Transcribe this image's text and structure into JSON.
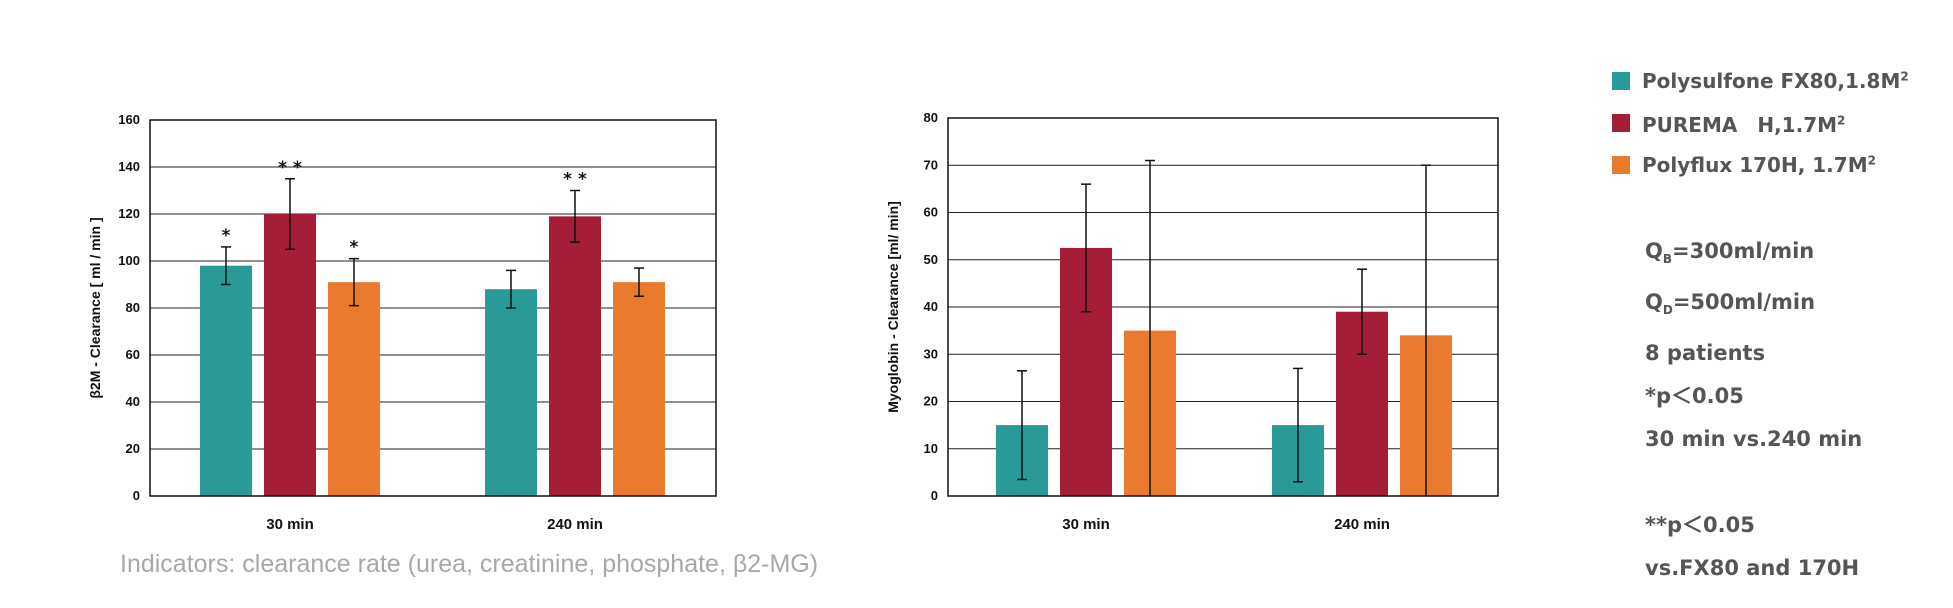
{
  "colors": {
    "teal": "#2a9a98",
    "crimson": "#a51d36",
    "orange": "#ea7a2e"
  },
  "legend": [
    {
      "label": "Polysulfone FX80,1.8M",
      "sup": "2",
      "color": "#2a9a98"
    },
    {
      "label": "PUREMA　H,1.7M",
      "sup": "2",
      "color": "#a51d36"
    },
    {
      "label": "Polyflux 170H, 1.7M",
      "sup": "2",
      "color": "#ea7a2e"
    }
  ],
  "notes": {
    "qb_prefix": "Q",
    "qb_sub": "B",
    "qb_rest": "=300ml/min",
    "qd_prefix": "Q",
    "qd_sub": "D",
    "qd_rest": "=500ml/min",
    "patients": "8 patients",
    "p1": "*p＜0.05",
    "p1_desc": "30 min vs.240 min",
    "p2": "**p＜0.05",
    "p2_desc": "vs.FX80 and 170H"
  },
  "caption": "Indicators: clearance rate (urea, creatinine, phosphate, β2-MG)",
  "chart_data": [
    {
      "type": "bar",
      "categories": [
        "30 min",
        "240 min"
      ],
      "ylabel": "β2M - Clearance [ ml / min ]",
      "ylim": [
        0,
        160
      ],
      "yticks": [
        0,
        20,
        40,
        60,
        80,
        100,
        120,
        140,
        160
      ],
      "grid": true,
      "series": [
        {
          "name": "Polysulfone FX80,1.8M2",
          "color": "#2a9a98",
          "values": [
            98,
            88
          ],
          "err": [
            8,
            8
          ],
          "stars": [
            "*",
            ""
          ]
        },
        {
          "name": "PUREMA H,1.7M2",
          "color": "#a51d36",
          "values": [
            120,
            119
          ],
          "err": [
            15,
            11
          ],
          "stars": [
            "* *",
            "* *"
          ]
        },
        {
          "name": "Polyflux 170H, 1.7M2",
          "color": "#ea7a2e",
          "values": [
            91,
            91
          ],
          "err": [
            10,
            6
          ],
          "stars": [
            "*",
            ""
          ]
        }
      ]
    },
    {
      "type": "bar",
      "categories": [
        "30 min",
        "240 min"
      ],
      "ylabel": "Myoglobin - Clearance [ml/ min]",
      "ylim": [
        0,
        80
      ],
      "yticks": [
        0,
        10,
        20,
        30,
        40,
        50,
        60,
        70,
        80
      ],
      "grid": true,
      "series": [
        {
          "name": "Polysulfone FX80,1.8M2",
          "color": "#2a9a98",
          "values": [
            15,
            15
          ],
          "err": [
            11.5,
            12
          ],
          "stars": [
            "",
            ""
          ]
        },
        {
          "name": "PUREMA H,1.7M2",
          "color": "#a51d36",
          "values": [
            52.5,
            39
          ],
          "err": [
            13.5,
            9
          ],
          "stars": [
            "",
            ""
          ]
        },
        {
          "name": "Polyflux 170H, 1.7M2",
          "color": "#ea7a2e",
          "values": [
            35,
            34
          ],
          "err": [
            36,
            36
          ],
          "stars": [
            "",
            ""
          ]
        }
      ]
    }
  ]
}
